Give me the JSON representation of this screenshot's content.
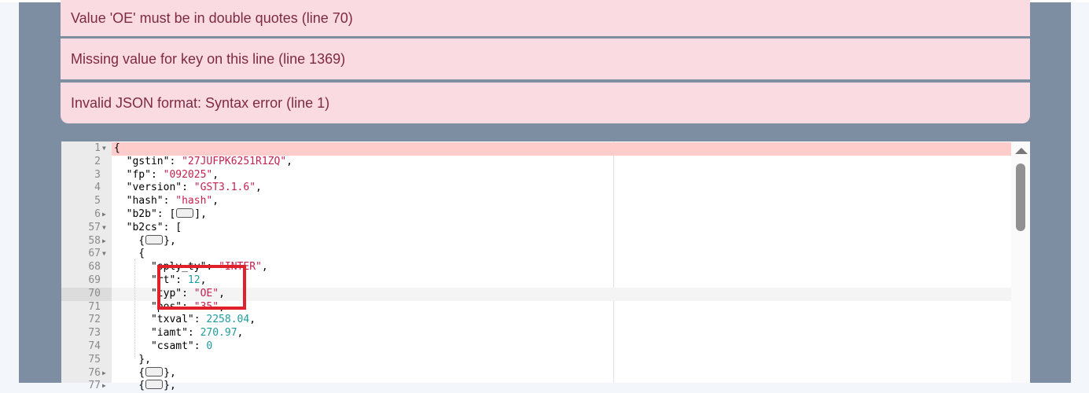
{
  "errors": [
    "Value 'OE' must be in double quotes (line 70)",
    "Missing value for key on this line (line 1369)",
    "Invalid JSON format: Syntax error (line 1)"
  ],
  "editor": {
    "error_line": 1,
    "active_line": 70,
    "lines": [
      {
        "num": "1",
        "fold": "open",
        "tokens": [
          {
            "t": "{"
          }
        ]
      },
      {
        "num": "2",
        "tokens": [
          {
            "t": "  \"gstin\": "
          },
          {
            "t": "\"27JUFPK6251R1ZQ\"",
            "c": "s"
          },
          {
            "t": ","
          }
        ]
      },
      {
        "num": "3",
        "tokens": [
          {
            "t": "  \"fp\": "
          },
          {
            "t": "\"092025\"",
            "c": "s"
          },
          {
            "t": ","
          }
        ]
      },
      {
        "num": "4",
        "tokens": [
          {
            "t": "  \"version\": "
          },
          {
            "t": "\"GST3.1.6\"",
            "c": "s"
          },
          {
            "t": ","
          }
        ]
      },
      {
        "num": "5",
        "tokens": [
          {
            "t": "  \"hash\": "
          },
          {
            "t": "\"hash\"",
            "c": "s"
          },
          {
            "t": ","
          }
        ]
      },
      {
        "num": "6",
        "fold": "closed",
        "tokens": [
          {
            "t": "  \"b2b\": ["
          },
          {
            "ph": true
          },
          {
            "t": "],"
          }
        ]
      },
      {
        "num": "57",
        "fold": "open",
        "tokens": [
          {
            "t": "  \"b2cs\": ["
          }
        ]
      },
      {
        "num": "58",
        "fold": "closed",
        "tokens": [
          {
            "t": "    {"
          },
          {
            "ph": true
          },
          {
            "t": "},"
          }
        ]
      },
      {
        "num": "67",
        "fold": "open",
        "tokens": [
          {
            "t": "    {"
          }
        ]
      },
      {
        "num": "68",
        "tokens": [
          {
            "t": "      \"sply_ty\": "
          },
          {
            "t": "\"INTER\"",
            "c": "s"
          },
          {
            "t": ","
          }
        ]
      },
      {
        "num": "69",
        "tokens": [
          {
            "t": "      \"rt\": "
          },
          {
            "t": "12",
            "c": "n"
          },
          {
            "t": ","
          }
        ]
      },
      {
        "num": "70",
        "tokens": [
          {
            "t": "      \"typ\": "
          },
          {
            "t": "\"OE\"",
            "c": "s"
          },
          {
            "t": ","
          }
        ]
      },
      {
        "num": "71",
        "tokens": [
          {
            "t": "      \"pos\": "
          },
          {
            "t": "\"35\"",
            "c": "s"
          },
          {
            "t": ","
          }
        ]
      },
      {
        "num": "72",
        "tokens": [
          {
            "t": "      \"txval\": "
          },
          {
            "t": "2258.04",
            "c": "n"
          },
          {
            "t": ","
          }
        ]
      },
      {
        "num": "73",
        "tokens": [
          {
            "t": "      \"iamt\": "
          },
          {
            "t": "270.97",
            "c": "n"
          },
          {
            "t": ","
          }
        ]
      },
      {
        "num": "74",
        "tokens": [
          {
            "t": "      \"csamt\": "
          },
          {
            "t": "0",
            "c": "n"
          }
        ]
      },
      {
        "num": "75",
        "tokens": [
          {
            "t": "    },"
          }
        ]
      },
      {
        "num": "76",
        "fold": "closed",
        "tokens": [
          {
            "t": "    {"
          },
          {
            "ph": true
          },
          {
            "t": "},"
          }
        ]
      },
      {
        "num": "77",
        "fold": "closed",
        "tokens": [
          {
            "t": "    {"
          },
          {
            "ph": true
          },
          {
            "t": "},"
          }
        ]
      }
    ]
  },
  "colors": {
    "error_bg": "#fbdbe2",
    "error_text": "#7e2a44",
    "panel": "#7d8ea3",
    "highlight_box": "#e0202a"
  }
}
